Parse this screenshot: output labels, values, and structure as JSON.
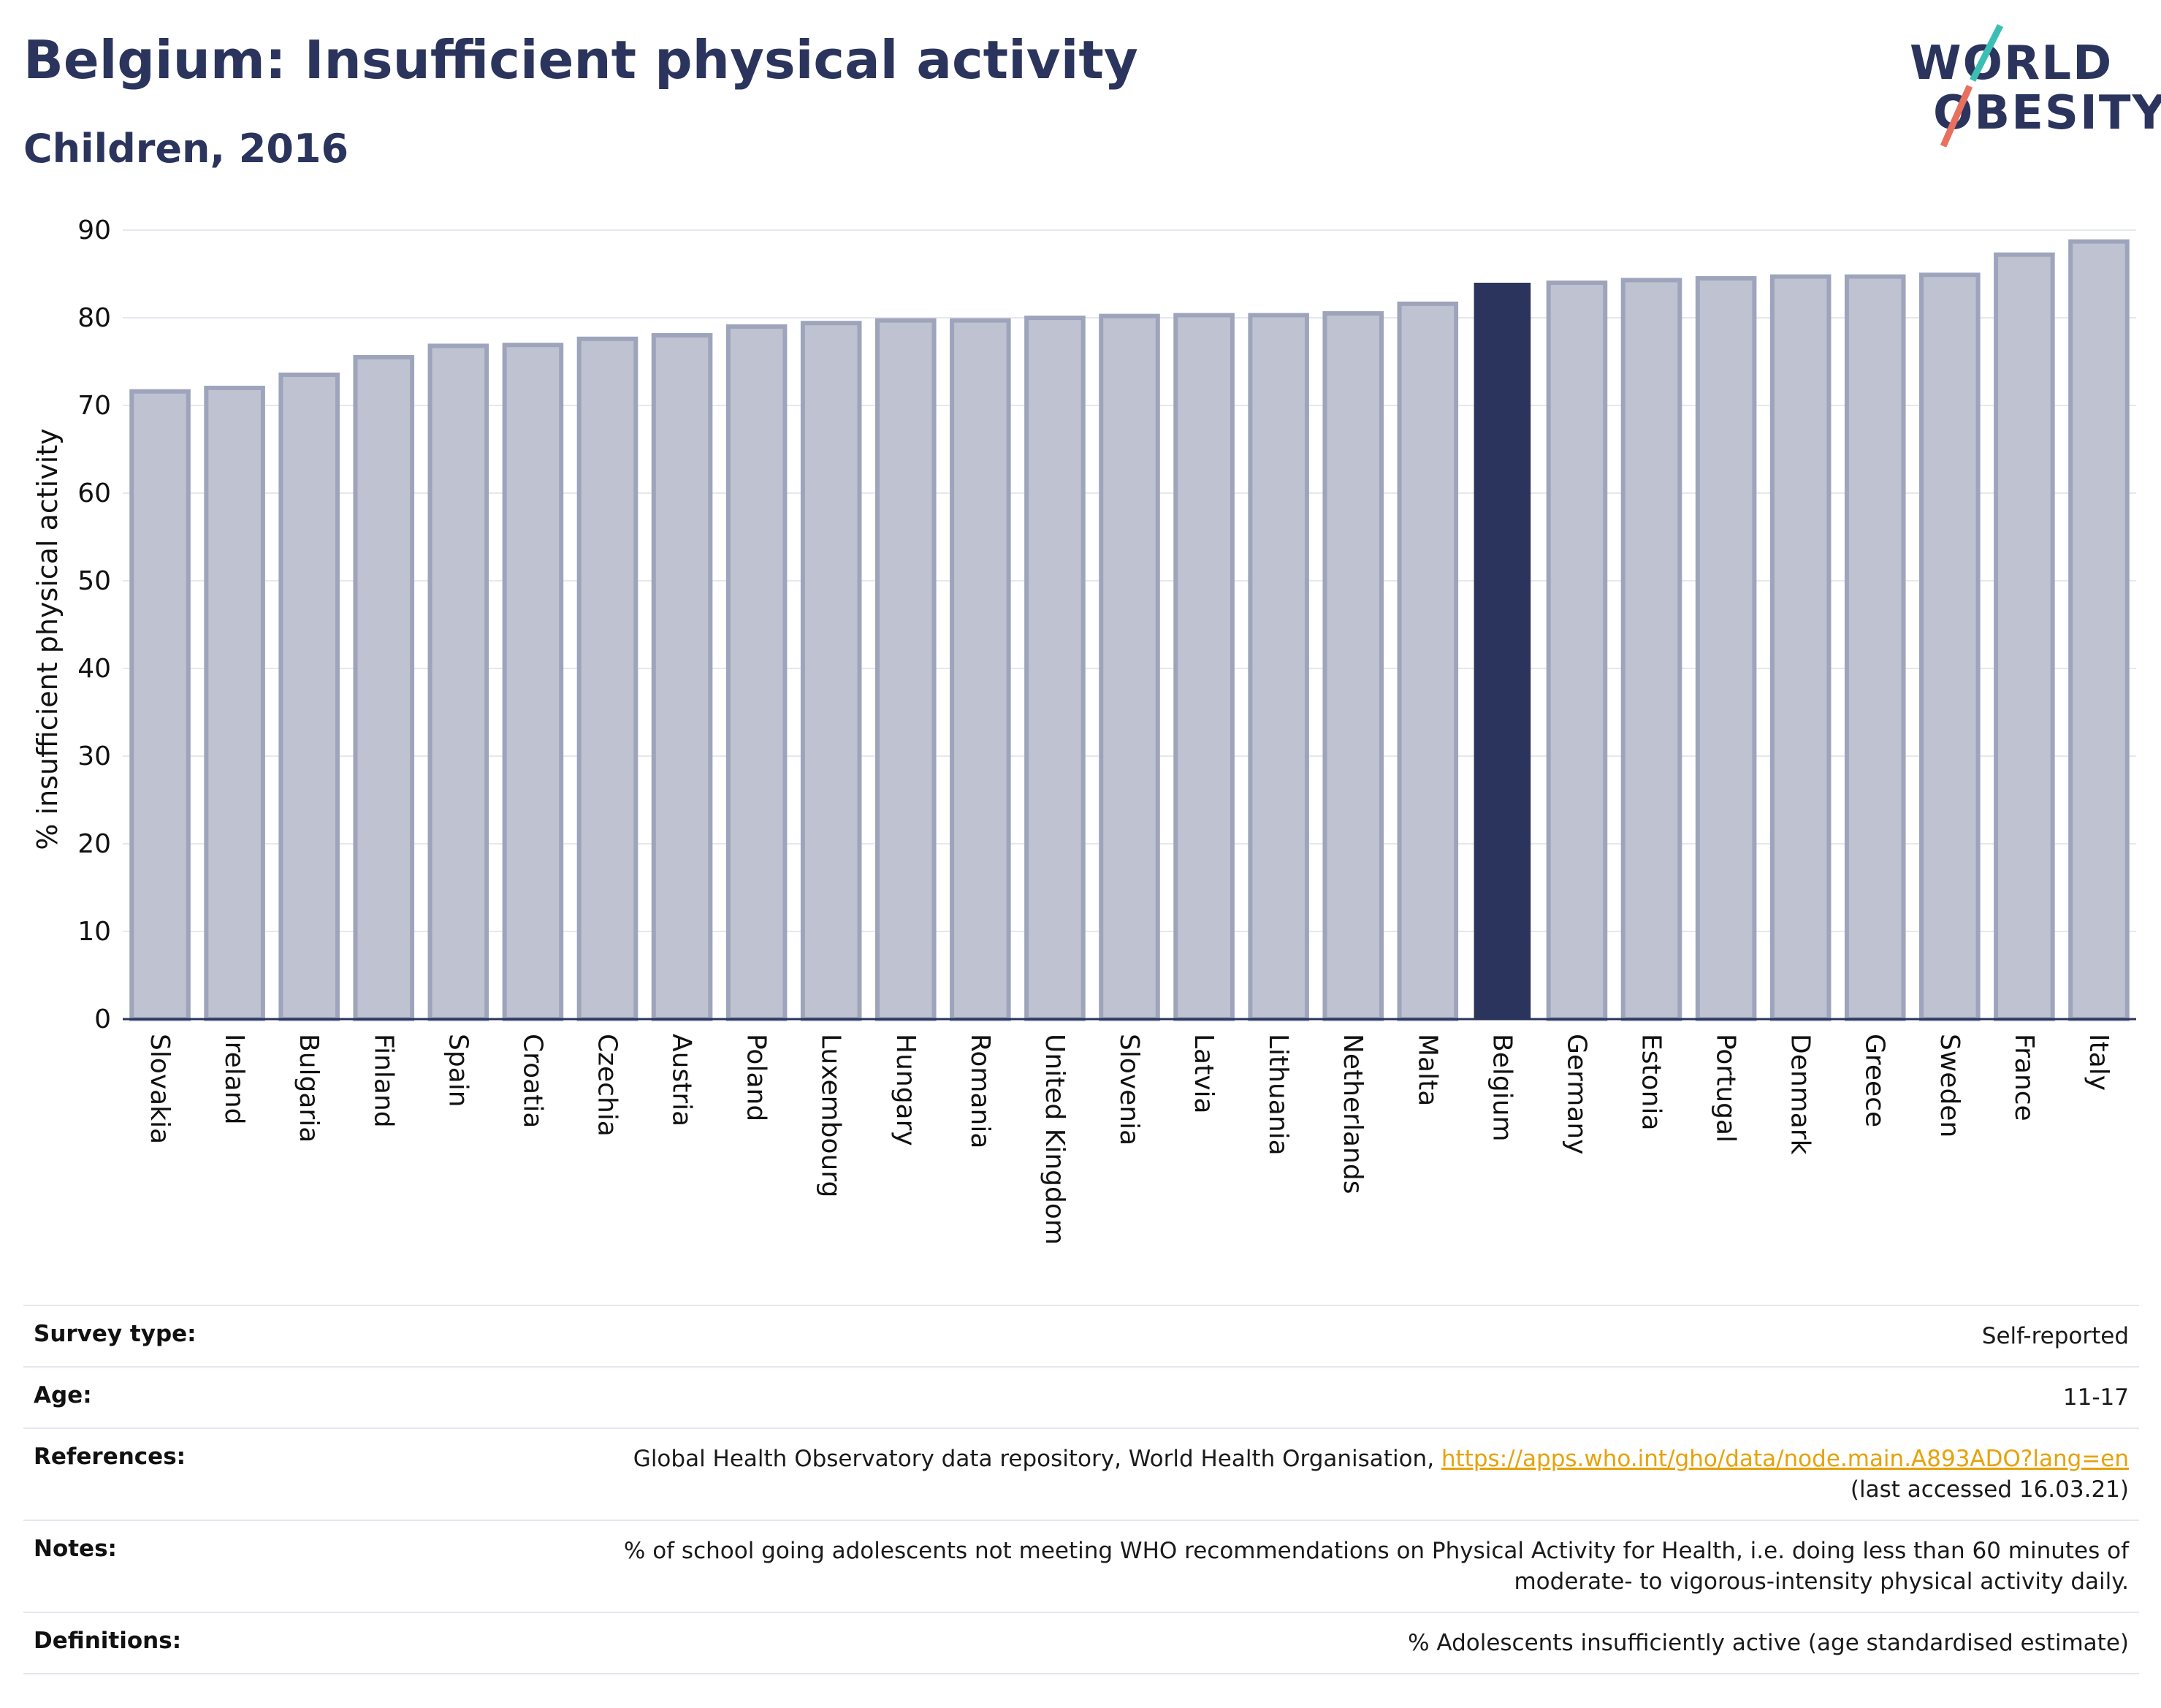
{
  "title": "Belgium: Insufficient physical activity",
  "subtitle": "Children, 2016",
  "logo": {
    "line1": "WORLD",
    "line2": "OBESITY"
  },
  "colors": {
    "highlight": "#2b345c",
    "bar": "#bec2d1",
    "bar_border": "#9ea4bb",
    "text": "#2b345c",
    "link": "#e6a20a",
    "logo_teal": "#3bbfb5",
    "logo_coral": "#e8705f"
  },
  "chart_data": {
    "type": "bar",
    "ylabel": "% insufficient physical activity",
    "ylim": [
      0,
      90
    ],
    "yticks": [
      0,
      10,
      20,
      30,
      40,
      50,
      60,
      70,
      80,
      90
    ],
    "grid": true,
    "highlight": "Belgium",
    "categories": [
      "Slovakia",
      "Ireland",
      "Bulgaria",
      "Finland",
      "Spain",
      "Croatia",
      "Czechia",
      "Austria",
      "Poland",
      "Luxembourg",
      "Hungary",
      "Romania",
      "United Kingdom",
      "Slovenia",
      "Latvia",
      "Lithuania",
      "Netherlands",
      "Malta",
      "Belgium",
      "Germany",
      "Estonia",
      "Portugal",
      "Denmark",
      "Greece",
      "Sweden",
      "France",
      "Italy"
    ],
    "values": [
      71.6,
      72.0,
      73.5,
      75.5,
      76.8,
      76.9,
      77.6,
      78.0,
      79.0,
      79.4,
      79.7,
      79.7,
      80.0,
      80.2,
      80.3,
      80.3,
      80.5,
      81.6,
      84.0,
      84.0,
      84.3,
      84.5,
      84.7,
      84.7,
      84.9,
      87.2,
      88.7
    ]
  },
  "meta": {
    "survey_label": "Survey type:",
    "survey_value": "Self-reported",
    "age_label": "Age:",
    "age_value": "11-17",
    "references_label": "References:",
    "references_text": "Global Health Observatory data repository, World Health Organisation, ",
    "references_link": "https://apps.who.int/gho/data/node.main.A893ADO?lang=en",
    "references_accessed": "(last accessed 16.03.21)",
    "notes_label": "Notes:",
    "notes_line1": "% of school going adolescents not meeting WHO recommendations on Physical Activity for Health, i.e. doing less than 60 minutes of",
    "notes_line2": "moderate- to vigorous-intensity physical activity daily.",
    "definitions_label": "Definitions:",
    "definitions_value": "% Adolescents insufficiently active (age standardised estimate)"
  }
}
